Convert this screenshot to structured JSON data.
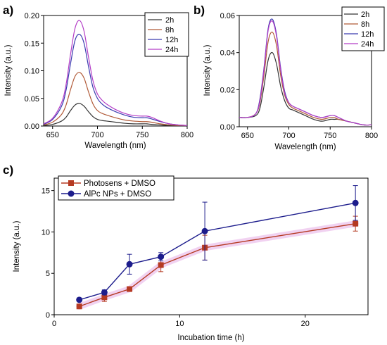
{
  "chart_data": [
    {
      "panel_label": "a)",
      "type": "line",
      "xlabel": "Wavelength (nm)",
      "ylabel": "Intensity (a.u.)",
      "xlim": [
        640,
        800
      ],
      "ylim": [
        0,
        0.2
      ],
      "xticks": [
        "650",
        "700",
        "750",
        "800"
      ],
      "yticks": [
        "0.00",
        "0.05",
        "0.10",
        "0.15",
        "0.20"
      ],
      "legend_position": "top-right",
      "x": [
        640,
        650,
        660,
        665,
        670,
        675,
        680,
        685,
        690,
        695,
        700,
        705,
        710,
        720,
        730,
        740,
        750,
        755,
        760,
        770,
        780,
        790,
        800
      ],
      "series": [
        {
          "name": "2h",
          "color": "#333333",
          "values": [
            0.001,
            0.003,
            0.009,
            0.016,
            0.028,
            0.038,
            0.041,
            0.036,
            0.026,
            0.017,
            0.012,
            0.01,
            0.009,
            0.007,
            0.005,
            0.004,
            0.004,
            0.004,
            0.003,
            0.002,
            0.001,
            0.001,
            0.001
          ]
        },
        {
          "name": "8h",
          "color": "#b15a38",
          "values": [
            0.002,
            0.007,
            0.021,
            0.038,
            0.066,
            0.09,
            0.097,
            0.087,
            0.062,
            0.04,
            0.028,
            0.023,
            0.02,
            0.015,
            0.011,
            0.009,
            0.008,
            0.008,
            0.007,
            0.004,
            0.002,
            0.001,
            0.001
          ]
        },
        {
          "name": "12h",
          "color": "#3a3aaf",
          "values": [
            0.003,
            0.012,
            0.036,
            0.065,
            0.113,
            0.155,
            0.166,
            0.15,
            0.108,
            0.07,
            0.05,
            0.04,
            0.034,
            0.026,
            0.02,
            0.016,
            0.015,
            0.015,
            0.013,
            0.008,
            0.004,
            0.002,
            0.001
          ]
        },
        {
          "name": "24h",
          "color": "#b43ec7",
          "values": [
            0.004,
            0.014,
            0.042,
            0.075,
            0.13,
            0.177,
            0.191,
            0.172,
            0.125,
            0.082,
            0.058,
            0.047,
            0.04,
            0.03,
            0.023,
            0.019,
            0.018,
            0.018,
            0.016,
            0.009,
            0.004,
            0.002,
            0.001
          ]
        }
      ]
    },
    {
      "panel_label": "b)",
      "type": "line",
      "xlabel": "Wavelength (nm)",
      "ylabel": "Intensity (a.u.)",
      "xlim": [
        640,
        800
      ],
      "ylim": [
        0,
        0.06
      ],
      "xticks": [
        "650",
        "700",
        "750",
        "800"
      ],
      "yticks": [
        "0.00",
        "0.02",
        "0.04",
        "0.06"
      ],
      "legend_position": "top-right",
      "x": [
        640,
        650,
        660,
        665,
        670,
        675,
        680,
        685,
        690,
        695,
        700,
        705,
        710,
        720,
        730,
        740,
        750,
        755,
        760,
        770,
        780,
        790,
        800
      ],
      "series": [
        {
          "name": "2h",
          "color": "#333333",
          "values": [
            0.005,
            0.005,
            0.006,
            0.01,
            0.022,
            0.036,
            0.04,
            0.034,
            0.022,
            0.014,
            0.01,
            0.009,
            0.008,
            0.006,
            0.004,
            0.003,
            0.004,
            0.004,
            0.004,
            0.003,
            0.002,
            0.001,
            0.001
          ]
        },
        {
          "name": "8h",
          "color": "#b15a38",
          "values": [
            0.005,
            0.005,
            0.007,
            0.013,
            0.028,
            0.046,
            0.051,
            0.044,
            0.028,
            0.017,
            0.012,
            0.01,
            0.009,
            0.007,
            0.005,
            0.004,
            0.005,
            0.005,
            0.004,
            0.003,
            0.002,
            0.001,
            0.001
          ]
        },
        {
          "name": "12h",
          "color": "#3a3aaf",
          "values": [
            0.005,
            0.005,
            0.007,
            0.015,
            0.032,
            0.053,
            0.058,
            0.05,
            0.032,
            0.019,
            0.013,
            0.011,
            0.01,
            0.008,
            0.006,
            0.005,
            0.006,
            0.006,
            0.005,
            0.003,
            0.002,
            0.001,
            0.001
          ]
        },
        {
          "name": "24h",
          "color": "#b43ec7",
          "values": [
            0.005,
            0.005,
            0.007,
            0.014,
            0.031,
            0.052,
            0.057,
            0.049,
            0.031,
            0.018,
            0.013,
            0.011,
            0.01,
            0.008,
            0.006,
            0.005,
            0.006,
            0.006,
            0.005,
            0.003,
            0.002,
            0.001,
            0.001
          ]
        }
      ]
    },
    {
      "panel_label": "c)",
      "type": "line",
      "xlabel": "Incubation time (h)",
      "ylabel": "Intensity (a.u.)",
      "xlim": [
        0,
        25
      ],
      "ylim": [
        0,
        16.5
      ],
      "xticks": [
        "0",
        "10",
        "20"
      ],
      "yticks": [
        "0",
        "5",
        "10",
        "15"
      ],
      "legend_position": "top-left",
      "x": [
        2,
        4,
        6,
        8.5,
        12,
        24
      ],
      "series": [
        {
          "name": "Photosens + DMSO",
          "color": "#b53a22",
          "marker": "square",
          "values": [
            1.0,
            2.1,
            3.1,
            6.0,
            8.1,
            11.0
          ],
          "errors": [
            0.2,
            0.5,
            0.2,
            0.8,
            1.5,
            0.9
          ]
        },
        {
          "name": "AlPc NPs + DMSO",
          "color": "#1c1c8c",
          "marker": "circle",
          "values": [
            1.8,
            2.7,
            6.1,
            7.0,
            10.1,
            13.5
          ],
          "errors": [
            0.1,
            0.3,
            1.2,
            0.5,
            3.5,
            2.1
          ]
        }
      ]
    }
  ]
}
